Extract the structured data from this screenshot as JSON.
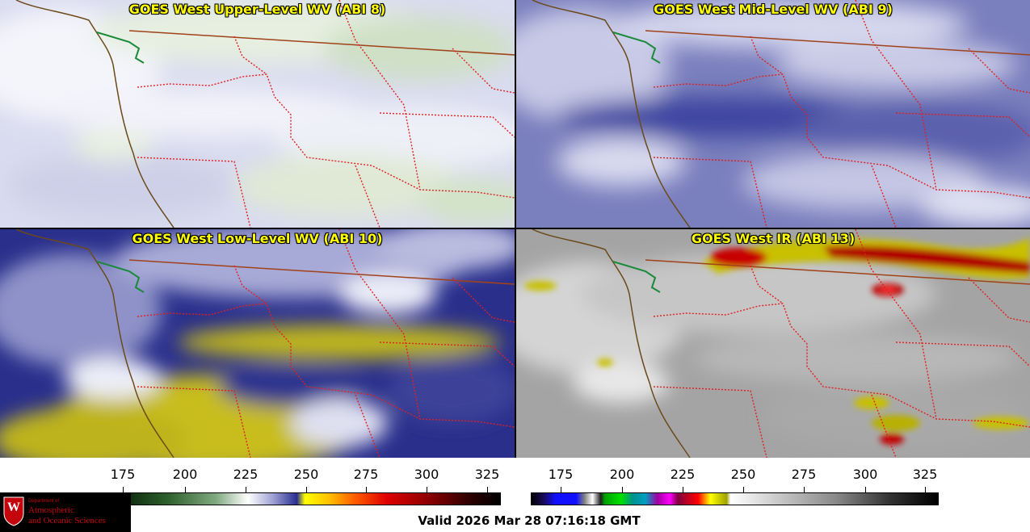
{
  "panels": {
    "upper": {
      "title": "GOES West Upper-Level WV (ABI 8)"
    },
    "mid": {
      "title": "GOES West Mid-Level WV (ABI 9)"
    },
    "low": {
      "title": "GOES West Low-Level WV (ABI 10)"
    },
    "ir": {
      "title": "GOES West IR (ABI 13)"
    }
  },
  "colorbars": {
    "wv": {
      "ticks": [
        "175",
        "200",
        "225",
        "250",
        "275",
        "300",
        "325"
      ]
    },
    "ir": {
      "ticks": [
        "175",
        "200",
        "225",
        "250",
        "275",
        "300",
        "325"
      ]
    }
  },
  "logo": {
    "line1": "Department of",
    "line2": "Atmospheric",
    "line3": "and Oceanic Sciences",
    "seal_letter": "W"
  },
  "valid_text": "Valid 2026 Mar 28 07:16:18 GMT",
  "colors": {
    "title_text": "#ffff00",
    "state_borders": "#e02020",
    "coastline": "#6b4a1a",
    "intl_border": "#a0421a",
    "logo_red": "#c5050c"
  }
}
